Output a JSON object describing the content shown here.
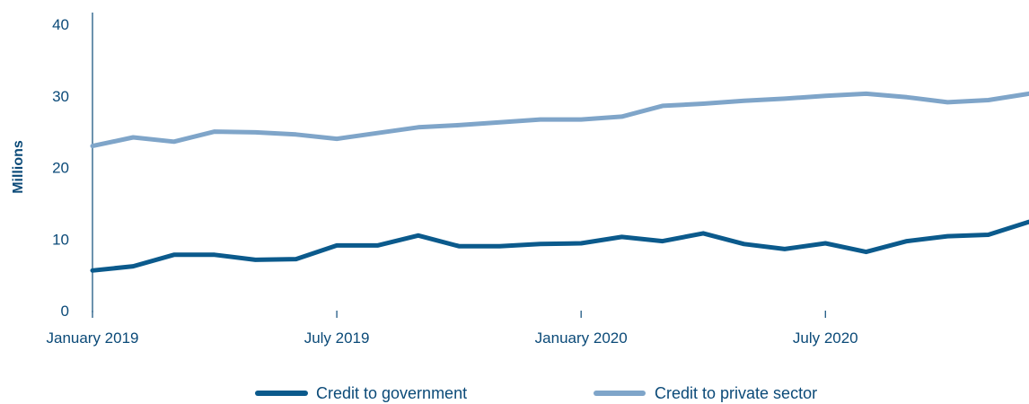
{
  "chart_data": {
    "type": "line",
    "ylabel": "Millions",
    "xlabel": "",
    "ylim": [
      0,
      40
    ],
    "yticks": [
      0,
      10,
      20,
      30,
      40
    ],
    "x": [
      "Jan 2019",
      "Feb 2019",
      "Mar 2019",
      "Apr 2019",
      "May 2019",
      "Jun 2019",
      "Jul 2019",
      "Aug 2019",
      "Sep 2019",
      "Oct 2019",
      "Nov 2019",
      "Dec 2019",
      "Jan 2020",
      "Feb 2020",
      "Mar 2020",
      "Apr 2020",
      "May 2020",
      "Jun 2020",
      "Jul 2020",
      "Aug 2020",
      "Sep 2020",
      "Oct 2020",
      "Nov 2020",
      "Dec 2020"
    ],
    "xtick_labels": [
      {
        "index": 0,
        "label": "January 2019"
      },
      {
        "index": 6,
        "label": "July 2019"
      },
      {
        "index": 12,
        "label": "January 2020"
      },
      {
        "index": 18,
        "label": "July 2020"
      }
    ],
    "grid": false,
    "legend_position": "bottom-center",
    "series": [
      {
        "name": "Credit to government",
        "color": "#0b5a8c",
        "values": [
          5.6,
          6.2,
          7.8,
          7.8,
          7.1,
          7.2,
          9.1,
          9.1,
          10.5,
          9.0,
          9.0,
          9.3,
          9.4,
          10.3,
          9.7,
          10.8,
          9.3,
          8.6,
          9.4,
          8.2,
          9.7,
          10.4,
          10.6,
          12.4
        ]
      },
      {
        "name": "Credit to private sector",
        "color": "#7fa5c9",
        "values": [
          23.0,
          24.2,
          23.6,
          25.0,
          24.9,
          24.6,
          24.0,
          24.8,
          25.6,
          25.9,
          26.3,
          26.7,
          26.7,
          27.1,
          28.6,
          28.9,
          29.3,
          29.6,
          30.0,
          30.3,
          29.8,
          29.1,
          29.4,
          30.3
        ]
      }
    ]
  }
}
